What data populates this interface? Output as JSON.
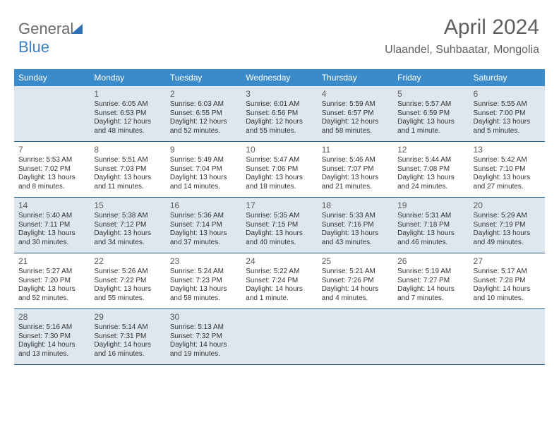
{
  "logo": {
    "text_gray": "General",
    "text_blue": "Blue"
  },
  "header": {
    "month_title": "April 2024",
    "location": "Ulaandel, Suhbaatar, Mongolia"
  },
  "colors": {
    "header_bg": "#3b8bca",
    "header_text": "#ffffff",
    "shaded_cell": "#dfe7ee",
    "row_border": "#2b5d8a",
    "text": "#333333",
    "muted": "#595959"
  },
  "day_headers": [
    "Sunday",
    "Monday",
    "Tuesday",
    "Wednesday",
    "Thursday",
    "Friday",
    "Saturday"
  ],
  "weeks": [
    [
      {
        "day": "",
        "shaded": true,
        "sunrise": "",
        "sunset": "",
        "daylight": ""
      },
      {
        "day": "1",
        "shaded": true,
        "sunrise": "Sunrise: 6:05 AM",
        "sunset": "Sunset: 6:53 PM",
        "daylight": "Daylight: 12 hours and 48 minutes."
      },
      {
        "day": "2",
        "shaded": true,
        "sunrise": "Sunrise: 6:03 AM",
        "sunset": "Sunset: 6:55 PM",
        "daylight": "Daylight: 12 hours and 52 minutes."
      },
      {
        "day": "3",
        "shaded": true,
        "sunrise": "Sunrise: 6:01 AM",
        "sunset": "Sunset: 6:56 PM",
        "daylight": "Daylight: 12 hours and 55 minutes."
      },
      {
        "day": "4",
        "shaded": true,
        "sunrise": "Sunrise: 5:59 AM",
        "sunset": "Sunset: 6:57 PM",
        "daylight": "Daylight: 12 hours and 58 minutes."
      },
      {
        "day": "5",
        "shaded": true,
        "sunrise": "Sunrise: 5:57 AM",
        "sunset": "Sunset: 6:59 PM",
        "daylight": "Daylight: 13 hours and 1 minute."
      },
      {
        "day": "6",
        "shaded": true,
        "sunrise": "Sunrise: 5:55 AM",
        "sunset": "Sunset: 7:00 PM",
        "daylight": "Daylight: 13 hours and 5 minutes."
      }
    ],
    [
      {
        "day": "7",
        "shaded": false,
        "sunrise": "Sunrise: 5:53 AM",
        "sunset": "Sunset: 7:02 PM",
        "daylight": "Daylight: 13 hours and 8 minutes."
      },
      {
        "day": "8",
        "shaded": false,
        "sunrise": "Sunrise: 5:51 AM",
        "sunset": "Sunset: 7:03 PM",
        "daylight": "Daylight: 13 hours and 11 minutes."
      },
      {
        "day": "9",
        "shaded": false,
        "sunrise": "Sunrise: 5:49 AM",
        "sunset": "Sunset: 7:04 PM",
        "daylight": "Daylight: 13 hours and 14 minutes."
      },
      {
        "day": "10",
        "shaded": false,
        "sunrise": "Sunrise: 5:47 AM",
        "sunset": "Sunset: 7:06 PM",
        "daylight": "Daylight: 13 hours and 18 minutes."
      },
      {
        "day": "11",
        "shaded": false,
        "sunrise": "Sunrise: 5:46 AM",
        "sunset": "Sunset: 7:07 PM",
        "daylight": "Daylight: 13 hours and 21 minutes."
      },
      {
        "day": "12",
        "shaded": false,
        "sunrise": "Sunrise: 5:44 AM",
        "sunset": "Sunset: 7:08 PM",
        "daylight": "Daylight: 13 hours and 24 minutes."
      },
      {
        "day": "13",
        "shaded": false,
        "sunrise": "Sunrise: 5:42 AM",
        "sunset": "Sunset: 7:10 PM",
        "daylight": "Daylight: 13 hours and 27 minutes."
      }
    ],
    [
      {
        "day": "14",
        "shaded": true,
        "sunrise": "Sunrise: 5:40 AM",
        "sunset": "Sunset: 7:11 PM",
        "daylight": "Daylight: 13 hours and 30 minutes."
      },
      {
        "day": "15",
        "shaded": true,
        "sunrise": "Sunrise: 5:38 AM",
        "sunset": "Sunset: 7:12 PM",
        "daylight": "Daylight: 13 hours and 34 minutes."
      },
      {
        "day": "16",
        "shaded": true,
        "sunrise": "Sunrise: 5:36 AM",
        "sunset": "Sunset: 7:14 PM",
        "daylight": "Daylight: 13 hours and 37 minutes."
      },
      {
        "day": "17",
        "shaded": true,
        "sunrise": "Sunrise: 5:35 AM",
        "sunset": "Sunset: 7:15 PM",
        "daylight": "Daylight: 13 hours and 40 minutes."
      },
      {
        "day": "18",
        "shaded": true,
        "sunrise": "Sunrise: 5:33 AM",
        "sunset": "Sunset: 7:16 PM",
        "daylight": "Daylight: 13 hours and 43 minutes."
      },
      {
        "day": "19",
        "shaded": true,
        "sunrise": "Sunrise: 5:31 AM",
        "sunset": "Sunset: 7:18 PM",
        "daylight": "Daylight: 13 hours and 46 minutes."
      },
      {
        "day": "20",
        "shaded": true,
        "sunrise": "Sunrise: 5:29 AM",
        "sunset": "Sunset: 7:19 PM",
        "daylight": "Daylight: 13 hours and 49 minutes."
      }
    ],
    [
      {
        "day": "21",
        "shaded": false,
        "sunrise": "Sunrise: 5:27 AM",
        "sunset": "Sunset: 7:20 PM",
        "daylight": "Daylight: 13 hours and 52 minutes."
      },
      {
        "day": "22",
        "shaded": false,
        "sunrise": "Sunrise: 5:26 AM",
        "sunset": "Sunset: 7:22 PM",
        "daylight": "Daylight: 13 hours and 55 minutes."
      },
      {
        "day": "23",
        "shaded": false,
        "sunrise": "Sunrise: 5:24 AM",
        "sunset": "Sunset: 7:23 PM",
        "daylight": "Daylight: 13 hours and 58 minutes."
      },
      {
        "day": "24",
        "shaded": false,
        "sunrise": "Sunrise: 5:22 AM",
        "sunset": "Sunset: 7:24 PM",
        "daylight": "Daylight: 14 hours and 1 minute."
      },
      {
        "day": "25",
        "shaded": false,
        "sunrise": "Sunrise: 5:21 AM",
        "sunset": "Sunset: 7:26 PM",
        "daylight": "Daylight: 14 hours and 4 minutes."
      },
      {
        "day": "26",
        "shaded": false,
        "sunrise": "Sunrise: 5:19 AM",
        "sunset": "Sunset: 7:27 PM",
        "daylight": "Daylight: 14 hours and 7 minutes."
      },
      {
        "day": "27",
        "shaded": false,
        "sunrise": "Sunrise: 5:17 AM",
        "sunset": "Sunset: 7:28 PM",
        "daylight": "Daylight: 14 hours and 10 minutes."
      }
    ],
    [
      {
        "day": "28",
        "shaded": true,
        "sunrise": "Sunrise: 5:16 AM",
        "sunset": "Sunset: 7:30 PM",
        "daylight": "Daylight: 14 hours and 13 minutes."
      },
      {
        "day": "29",
        "shaded": true,
        "sunrise": "Sunrise: 5:14 AM",
        "sunset": "Sunset: 7:31 PM",
        "daylight": "Daylight: 14 hours and 16 minutes."
      },
      {
        "day": "30",
        "shaded": true,
        "sunrise": "Sunrise: 5:13 AM",
        "sunset": "Sunset: 7:32 PM",
        "daylight": "Daylight: 14 hours and 19 minutes."
      },
      {
        "day": "",
        "shaded": true,
        "sunrise": "",
        "sunset": "",
        "daylight": ""
      },
      {
        "day": "",
        "shaded": true,
        "sunrise": "",
        "sunset": "",
        "daylight": ""
      },
      {
        "day": "",
        "shaded": true,
        "sunrise": "",
        "sunset": "",
        "daylight": ""
      },
      {
        "day": "",
        "shaded": true,
        "sunrise": "",
        "sunset": "",
        "daylight": ""
      }
    ]
  ]
}
